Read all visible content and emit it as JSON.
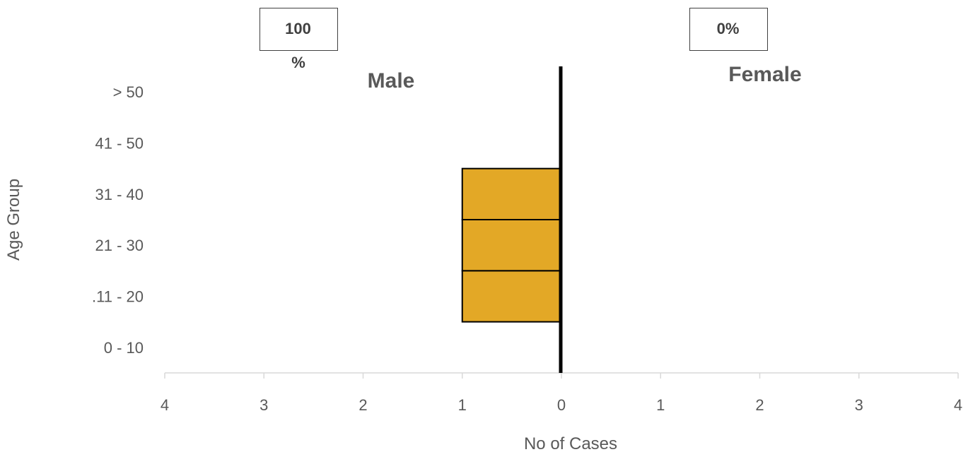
{
  "chart_data": {
    "type": "bar",
    "orientation": "horizontal-population-pyramid",
    "categories": [
      "0 - 10",
      ".11 - 20",
      "21 - 30",
      "31 - 40",
      "41 - 50",
      "> 50"
    ],
    "series": [
      {
        "name": "Male",
        "values": [
          0,
          1,
          1,
          1,
          0,
          0
        ],
        "side": "left"
      },
      {
        "name": "Female",
        "values": [
          0,
          0,
          0,
          0,
          0,
          0
        ],
        "side": "right"
      }
    ],
    "xlabel": "No of Cases",
    "ylabel": "Age Group",
    "xlim": [
      -4,
      4
    ],
    "x_ticks": [
      -4,
      -3,
      -2,
      -1,
      0,
      1,
      2,
      3,
      4
    ],
    "x_tick_labels": [
      "4",
      "3",
      "2",
      "1",
      "0",
      "1",
      "2",
      "3",
      "4"
    ],
    "bar_color": "#E3A826",
    "side_labels": {
      "male": "Male",
      "female": "Female"
    },
    "percent_labels": {
      "male_line1": "100",
      "male_line2": "%",
      "female": "0%"
    },
    "grid": false
  }
}
